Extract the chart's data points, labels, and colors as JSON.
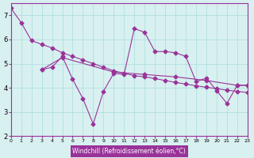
{
  "background_color": "#d8f0f0",
  "line_color": "#993399",
  "grid_color": "#aadddd",
  "xlabel": "Windchill (Refroidissement éolien,°C)",
  "xlabel_bg": "#993399",
  "xlabel_fg": "#ffffff",
  "ylim": [
    2,
    7.5
  ],
  "xlim": [
    0,
    23
  ],
  "yticks": [
    2,
    3,
    4,
    5,
    6,
    7
  ],
  "xticks": [
    0,
    1,
    2,
    3,
    4,
    5,
    6,
    7,
    8,
    9,
    10,
    11,
    12,
    13,
    14,
    15,
    16,
    17,
    18,
    19,
    20,
    21,
    22,
    23
  ],
  "series": [
    [
      7.3,
      6.7,
      5.95,
      5.8,
      5.65,
      5.45,
      5.3,
      5.15,
      5.0,
      4.85,
      4.7,
      4.6,
      4.5,
      4.45,
      4.38,
      4.3,
      4.22,
      4.15,
      4.08,
      4.02,
      3.96,
      3.9,
      3.85,
      3.8
    ],
    [
      null,
      null,
      null,
      4.75,
      null,
      5.25,
      null,
      null,
      null,
      null,
      4.65,
      null,
      null,
      4.55,
      null,
      null,
      4.45,
      null,
      null,
      4.3,
      null,
      null,
      4.1,
      4.1
    ],
    [
      null,
      null,
      null,
      4.75,
      4.85,
      5.3,
      4.35,
      3.55,
      2.5,
      3.85,
      4.6,
      4.55,
      6.45,
      6.3,
      5.5,
      5.5,
      5.45,
      5.3,
      4.25,
      4.4,
      3.88,
      3.35,
      4.1,
      4.1
    ]
  ]
}
